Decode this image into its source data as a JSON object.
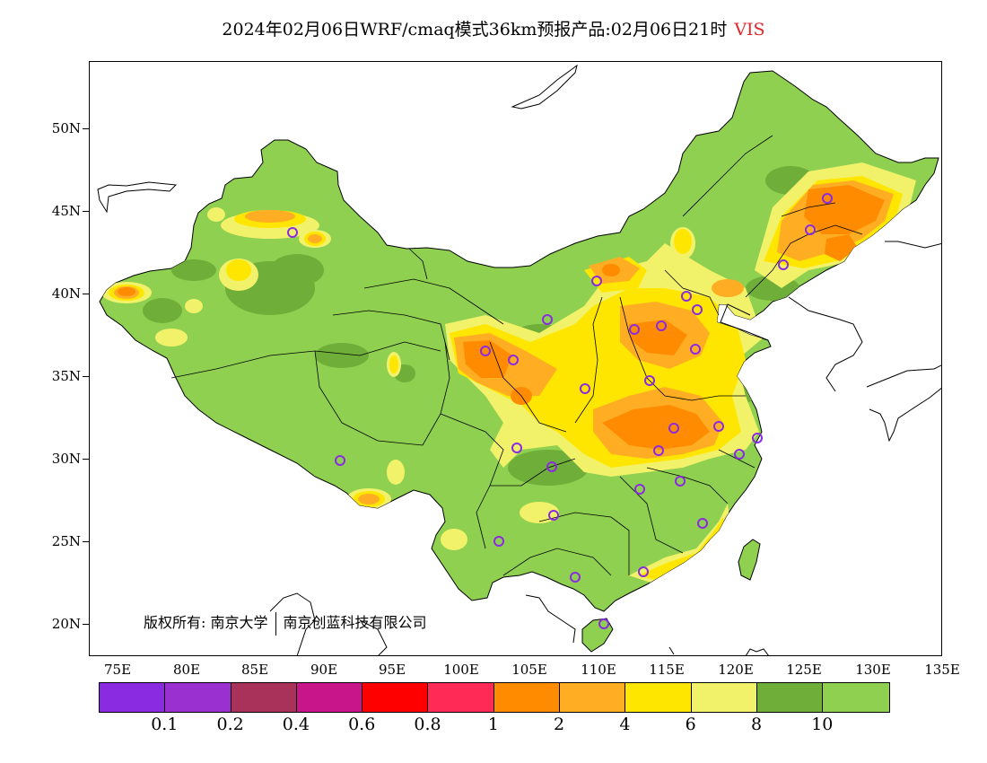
{
  "title": {
    "text": "2024年02月06日WRF/cmaq模式36km预报产品:02月06日21时",
    "variable": "VIS",
    "variable_color": "#e0262c"
  },
  "axes": {
    "lat_labels": [
      "50N",
      "45N",
      "40N",
      "35N",
      "30N",
      "25N",
      "20N"
    ],
    "lon_labels": [
      "75E",
      "80E",
      "85E",
      "90E",
      "95E",
      "100E",
      "105E",
      "110E",
      "115E",
      "120E",
      "125E",
      "130E",
      "135E"
    ]
  },
  "copyright": {
    "prefix": "版权所有:",
    "org1": "南京大学",
    "org2": "南京创蓝科技有限公司"
  },
  "colorbar": {
    "colors": [
      "#8a2be2",
      "#9b30d0",
      "#a8325a",
      "#c8168a",
      "#ff0000",
      "#ff2a55",
      "#ff8c00",
      "#ffae24",
      "#ffe600",
      "#f2f26a",
      "#6fae38",
      "#8fd050"
    ],
    "labels": [
      "0.1",
      "0.2",
      "0.4",
      "0.6",
      "0.8",
      "1",
      "2",
      "4",
      "6",
      "8",
      "10"
    ]
  },
  "legend_colors": {
    "land_base": "#8fd050",
    "dark_green": "#6fae38",
    "light_yellow": "#f2f26a",
    "yellow": "#ffe600",
    "orange_light": "#ffae24",
    "orange": "#ff8c00",
    "station_marker": "#8a2be2"
  }
}
